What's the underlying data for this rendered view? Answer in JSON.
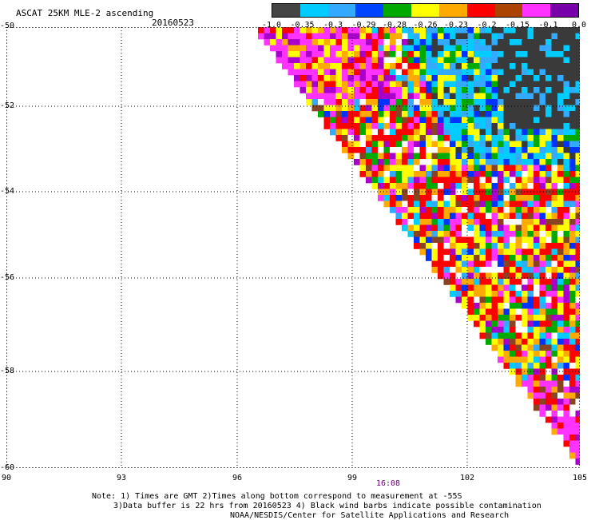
{
  "header": {
    "title": "ASCAT 25KM MLE-2 ascending",
    "date": "20160523"
  },
  "legend": {
    "labels": [
      "-1.0",
      "-0.35",
      "-0.3",
      "-0.29",
      "-0.28",
      "-0.26",
      "-0.23",
      "-0.2",
      "-0.15",
      "-0.1",
      "0.0"
    ],
    "colors": [
      "#444444",
      "#00ccff",
      "#33aaff",
      "#0044ff",
      "#00aa00",
      "#ffff00",
      "#ffaa00",
      "#ff0000",
      "#aa4400",
      "#ff33ff",
      "#7700aa"
    ]
  },
  "axes": {
    "lat_labels": [
      "-50",
      "-52",
      "-54",
      "-56",
      "-58",
      "-60"
    ],
    "lon_labels": [
      "90",
      "93",
      "96",
      "99",
      "102",
      "105"
    ],
    "time_label": "16:08"
  },
  "notes": {
    "line1": "Note: 1) Times are GMT 2)Times along bottom correspond to measurement at -55S",
    "line2": "3)Data buffer is 22 hrs from 20160523 4) Black wind barbs indicate possible contamination",
    "line3": "NOAA/NESDIS/Center for Satellite Applications and Research"
  },
  "map_data": {
    "lat_range": [
      -60,
      -50
    ],
    "lon_range": [
      90,
      105
    ],
    "swath": "diagonal swath from 97E,-50 to 105E,-60"
  }
}
